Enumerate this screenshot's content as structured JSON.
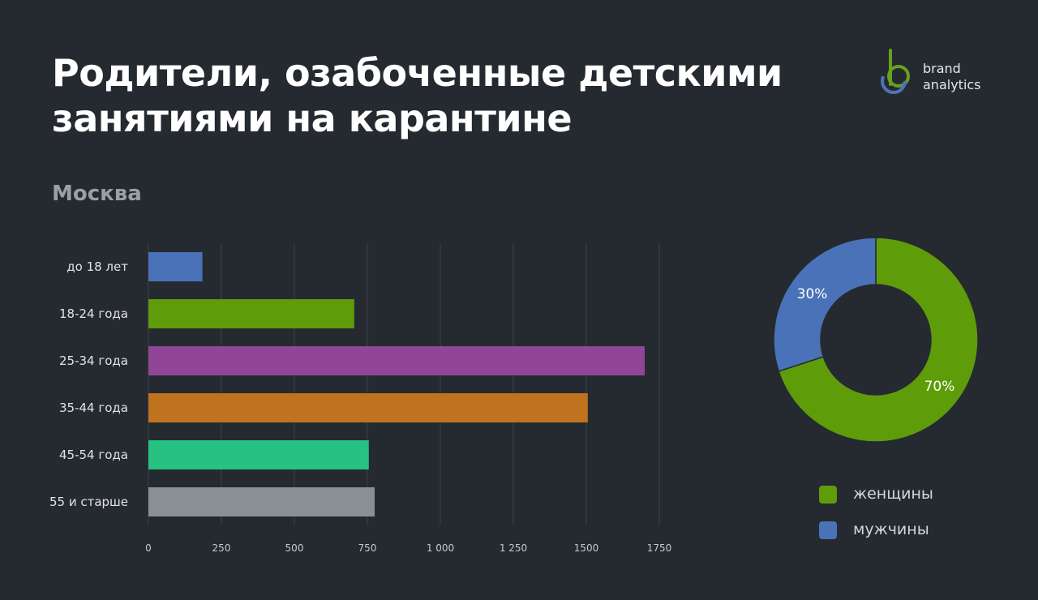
{
  "title_lines": [
    "Родители, озабоченные детскими",
    "занятиями на карантине"
  ],
  "subtitle": "Москва",
  "logo": {
    "text_lines": [
      "brand",
      "analytics"
    ],
    "icon": "brand-analytics-logo-icon",
    "colors": [
      "#6a9f1f",
      "#4b74b8"
    ]
  },
  "chart_data": [
    {
      "type": "bar",
      "orientation": "horizontal",
      "categories": [
        "до 18 лет",
        "18-24 года",
        "25-34 года",
        "35-44 года",
        "45-54 года",
        "55 и старше"
      ],
      "values": [
        185,
        705,
        1700,
        1505,
        755,
        775
      ],
      "colors": [
        "#4a72b8",
        "#5f9c0a",
        "#914596",
        "#c0731f",
        "#27c283",
        "#8a8f95"
      ],
      "xlim": [
        0,
        1750
      ],
      "xticks": [
        0,
        250,
        500,
        750,
        1000,
        1250,
        1500,
        1750
      ],
      "xtick_labels": [
        "0",
        "250",
        "500",
        "750",
        "1 000",
        "1 250",
        "1500",
        "1750"
      ],
      "grid": true
    },
    {
      "type": "pie",
      "donut": true,
      "slices": [
        {
          "label": "женщины",
          "value": 70,
          "display": "70%",
          "color": "#5f9c0a"
        },
        {
          "label": "мужчины",
          "value": 30,
          "display": "30%",
          "color": "#4a72b8"
        }
      ],
      "legend_position": "bottom"
    }
  ]
}
